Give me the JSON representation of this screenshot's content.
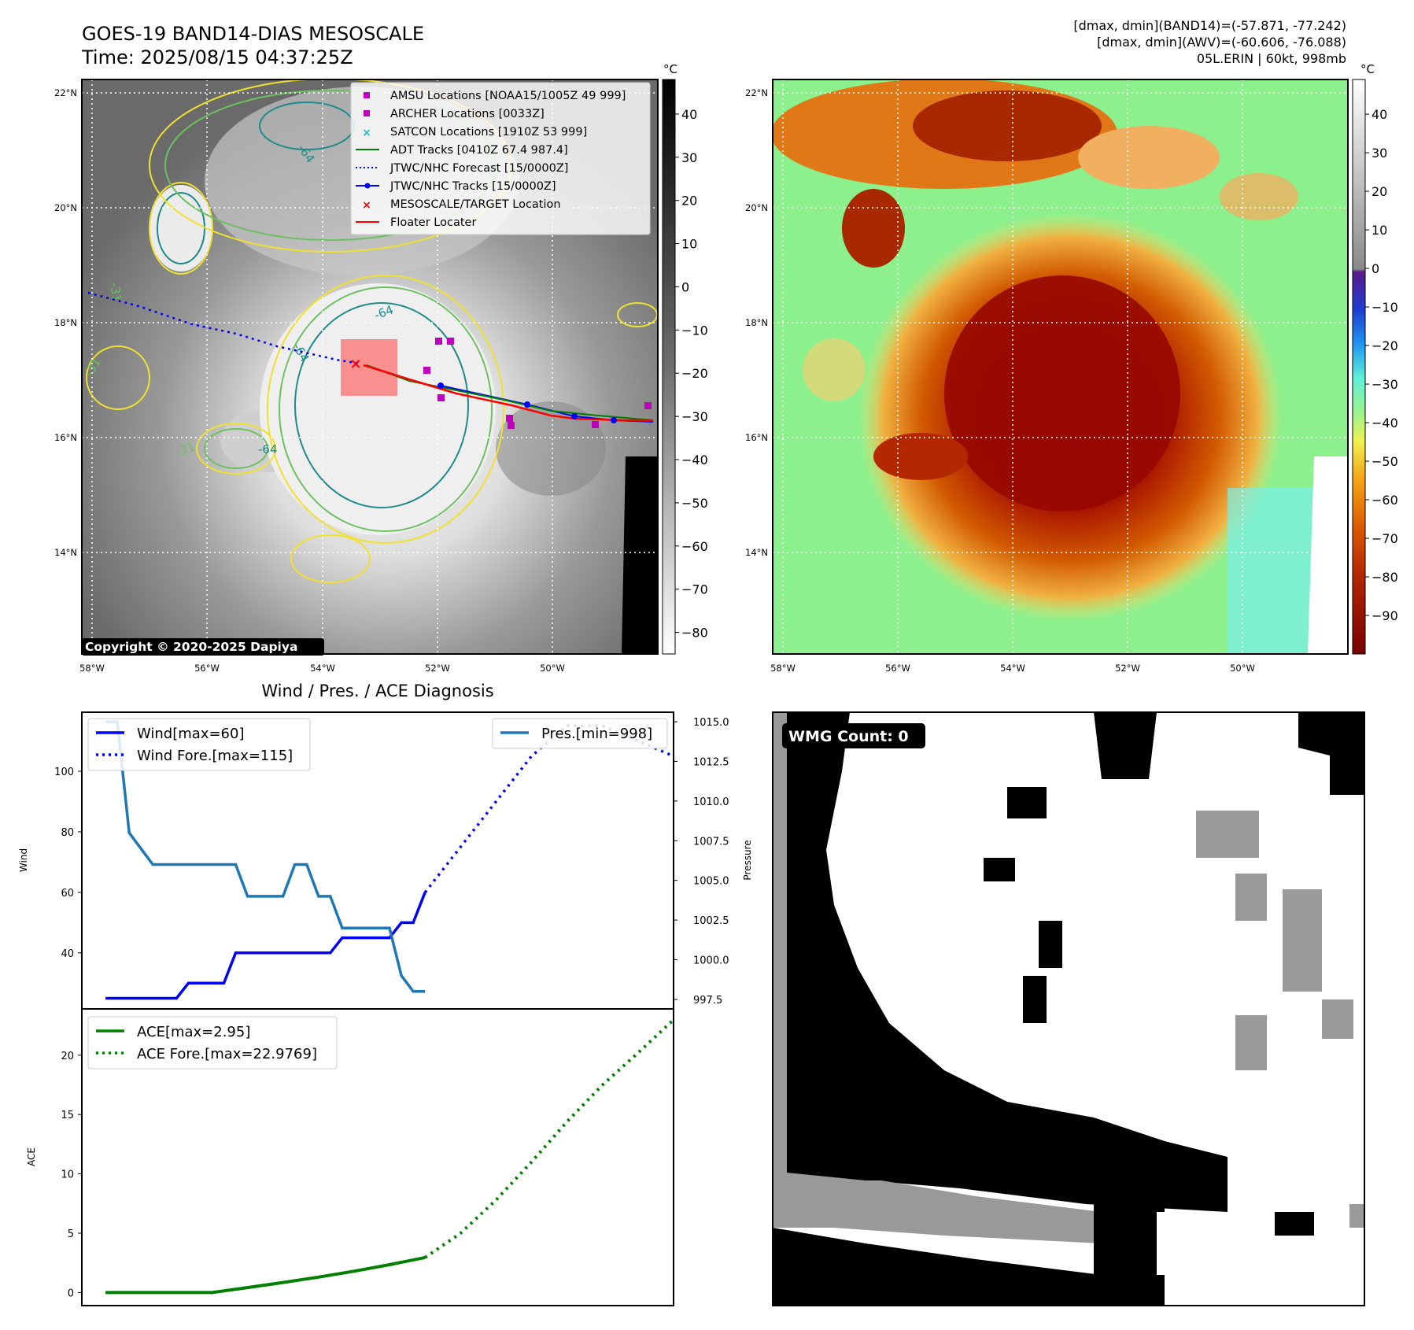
{
  "header": {
    "title": "GOES-19 BAND14-DIAS MESOSCALE",
    "time": "Time: 2025/08/15 04:37:25Z",
    "stats_band14": "[dmax, dmin](BAND14)=(-57.871, -77.242)",
    "stats_awv": "[dmax, dmin](AWV)=(-60.606, -76.088)",
    "storm": "05L.ERIN | 60kt, 998mb"
  },
  "map_left": {
    "copyright": "Copyright © 2020-2025 Dapiya",
    "colorbar_unit": "°C",
    "colorbar_ticks": [
      "40",
      "30",
      "20",
      "10",
      "0",
      "−10",
      "−20",
      "−30",
      "−40",
      "−50",
      "−60",
      "−70",
      "−80"
    ],
    "lon_labels": [
      "58°W",
      "56°W",
      "54°W",
      "52°W",
      "50°W"
    ],
    "lat_labels": [
      "22°N",
      "20°N",
      "18°N",
      "16°N",
      "14°N"
    ],
    "contour_labels": [
      "-64",
      "-64",
      "-64",
      "-31",
      "-31",
      "-31",
      "-64"
    ],
    "legend": [
      {
        "label": "AMSU Locations [NOAA15/1005Z 49 999]",
        "marker": "square",
        "color": "#bf00bf"
      },
      {
        "label": "ARCHER Locations [0033Z]",
        "marker": "square",
        "color": "#bf00bf"
      },
      {
        "label": "SATCON Locations [1910Z 53 999]",
        "marker": "x",
        "color": "#17becf"
      },
      {
        "label": "ADT Tracks [0410Z 67.4 987.4]",
        "marker": "line",
        "color": "#008000"
      },
      {
        "label": "JTWC/NHC Forecast [15/0000Z]",
        "marker": "dotted",
        "color": "#0000ff"
      },
      {
        "label": "JTWC/NHC Tracks [15/0000Z]",
        "marker": "line-dot",
        "color": "#0000ff"
      },
      {
        "label": "MESOSCALE/TARGET Location",
        "marker": "x",
        "color": "#ff0000"
      },
      {
        "label": "Floater Locater",
        "marker": "line",
        "color": "#ff0000"
      }
    ]
  },
  "map_right": {
    "colorbar_unit": "°C",
    "colorbar_ticks": [
      "40",
      "30",
      "20",
      "10",
      "0",
      "−10",
      "−20",
      "−30",
      "−40",
      "−50",
      "−60",
      "−70",
      "−80",
      "−90"
    ],
    "lon_labels": [
      "58°W",
      "56°W",
      "54°W",
      "52°W",
      "50°W"
    ],
    "lat_labels": [
      "22°N",
      "20°N",
      "18°N",
      "16°N",
      "14°N"
    ]
  },
  "wmg": {
    "label": "WMG Count: 0"
  },
  "chart_data": [
    {
      "type": "line",
      "title": "Wind / Pres. / ACE Diagnosis",
      "ylabel": "Wind",
      "y2label": "Pressure",
      "ylim": [
        21.5,
        119.5
      ],
      "y2lim": [
        996.9,
        1015.6
      ],
      "yticks": [
        40,
        60,
        80,
        100
      ],
      "y2ticks": [
        997.5,
        1000.0,
        1002.5,
        1005.0,
        1007.5,
        1010.0,
        1012.5,
        1015.0
      ],
      "xlim": [
        -2,
        48
      ],
      "x": [
        0,
        1,
        2,
        3,
        4,
        5,
        6,
        7,
        8,
        9,
        10,
        11,
        12,
        13,
        14,
        15,
        16,
        17,
        18,
        19,
        20,
        21,
        22,
        23,
        24,
        25,
        26,
        27
      ],
      "series": [
        {
          "name": "Wind[max=60]",
          "axis": "left",
          "color": "#0000ff",
          "style": "solid",
          "x": [
            0,
            1,
            2,
            3,
            4,
            5,
            6,
            7,
            8,
            9,
            10,
            11,
            12,
            13,
            14,
            15,
            16,
            17,
            18,
            19,
            20,
            21,
            22,
            23,
            24,
            25,
            26,
            27
          ],
          "values": [
            25,
            25,
            25,
            25,
            25,
            25,
            25,
            30,
            30,
            30,
            30,
            40,
            40,
            40,
            40,
            40,
            40,
            40,
            40,
            40,
            45,
            45,
            45,
            45,
            45,
            50,
            50,
            60
          ]
        },
        {
          "name": "Wind Fore.[max=115]",
          "axis": "left",
          "color": "#0000ff",
          "style": "dotted",
          "x": [
            27,
            30,
            33,
            36,
            39,
            42,
            45,
            48
          ],
          "values": [
            60,
            75,
            90,
            105,
            115,
            115,
            110,
            105
          ]
        },
        {
          "name": "Pres.[min=998]",
          "axis": "right",
          "color": "#1f77b4",
          "style": "solid",
          "x": [
            0,
            1,
            2,
            3,
            4,
            5,
            6,
            7,
            8,
            9,
            10,
            11,
            12,
            13,
            14,
            15,
            16,
            17,
            18,
            19,
            20,
            21,
            22,
            23,
            24,
            25,
            26,
            27
          ],
          "values": [
            1015,
            1015,
            1008,
            1007,
            1006,
            1006,
            1006,
            1006,
            1006,
            1006,
            1006,
            1006,
            1004,
            1004,
            1004,
            1004,
            1006,
            1006,
            1004,
            1004,
            1002,
            1002,
            1002,
            1002,
            1002,
            999,
            998,
            998
          ]
        }
      ],
      "legend_left": [
        "Wind[max=60]",
        "Wind Fore.[max=115]"
      ],
      "legend_right": [
        "Pres.[min=998]"
      ]
    },
    {
      "type": "line",
      "ylabel": "ACE",
      "ylim": [
        -1.1,
        23.9
      ],
      "xlim": [
        -2,
        48
      ],
      "yticks": [
        0,
        5,
        10,
        15,
        20
      ],
      "series": [
        {
          "name": "ACE[max=2.95]",
          "color": "#008000",
          "style": "solid",
          "x": [
            0,
            3,
            6,
            9,
            12,
            15,
            18,
            21,
            24,
            27
          ],
          "values": [
            0,
            0,
            0,
            0,
            0.42,
            0.85,
            1.3,
            1.8,
            2.35,
            2.95
          ]
        },
        {
          "name": "ACE Fore.[max=22.9769]",
          "color": "#008000",
          "style": "dotted",
          "x": [
            27,
            30,
            33,
            36,
            39,
            42,
            45,
            48
          ],
          "values": [
            2.95,
            5.0,
            7.8,
            11.0,
            14.4,
            17.5,
            20.2,
            22.9769
          ]
        }
      ]
    }
  ]
}
